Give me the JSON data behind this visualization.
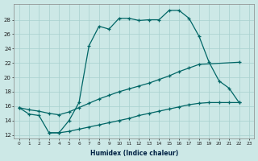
{
  "xlabel": "Humidex (Indice chaleur)",
  "bg_color": "#cce8e6",
  "grid_color": "#a8d0ce",
  "line_color": "#006666",
  "xlim": [
    -0.5,
    23.5
  ],
  "ylim": [
    11.5,
    30.2
  ],
  "xticks": [
    0,
    1,
    2,
    3,
    4,
    5,
    6,
    7,
    8,
    9,
    10,
    11,
    12,
    13,
    14,
    15,
    16,
    17,
    18,
    19,
    20,
    21,
    22,
    23
  ],
  "yticks": [
    12,
    14,
    16,
    18,
    20,
    22,
    24,
    26,
    28
  ],
  "line1_x": [
    0,
    1,
    2,
    3,
    4,
    5,
    6,
    7,
    8,
    9,
    10,
    11,
    12,
    13,
    14,
    15,
    16,
    17,
    18,
    19,
    20,
    21,
    22
  ],
  "line1_y": [
    15.8,
    14.9,
    14.7,
    12.3,
    12.3,
    14.0,
    16.5,
    24.4,
    27.1,
    26.7,
    28.2,
    28.2,
    27.9,
    28.0,
    28.0,
    29.3,
    29.3,
    28.2,
    25.7,
    22.1,
    19.5,
    18.5,
    16.5
  ],
  "line2_x": [
    0,
    1,
    2,
    3,
    4,
    5,
    6,
    7,
    8,
    9,
    10,
    11,
    12,
    13,
    14,
    15,
    16,
    17,
    18,
    22
  ],
  "line2_y": [
    15.8,
    15.5,
    15.3,
    15.0,
    14.8,
    15.2,
    15.8,
    16.4,
    17.0,
    17.5,
    18.0,
    18.4,
    18.8,
    19.2,
    19.7,
    20.2,
    20.8,
    21.3,
    21.8,
    22.1
  ],
  "line3_x": [
    3,
    4,
    5,
    6,
    7,
    8,
    9,
    10,
    11,
    12,
    13,
    14,
    15,
    16,
    17,
    18,
    19,
    20,
    21,
    22
  ],
  "line3_y": [
    12.3,
    12.3,
    12.5,
    12.8,
    13.1,
    13.4,
    13.7,
    14.0,
    14.3,
    14.7,
    15.0,
    15.3,
    15.6,
    15.9,
    16.2,
    16.4,
    16.5,
    16.5,
    16.5,
    16.5
  ]
}
